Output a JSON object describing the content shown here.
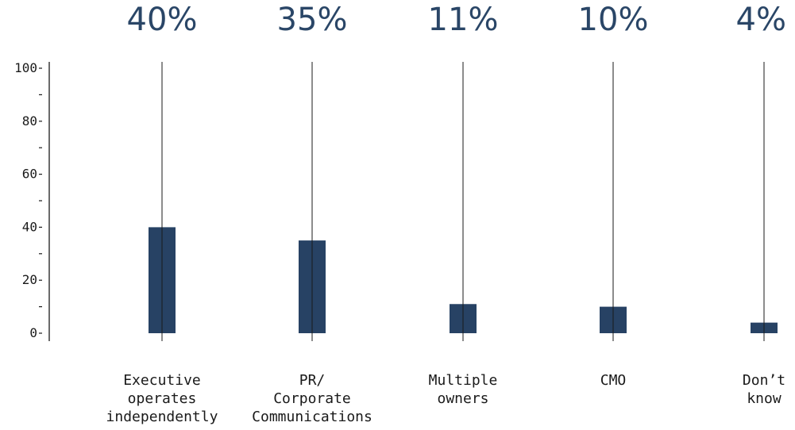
{
  "chart_data": {
    "type": "bar",
    "categories": [
      [
        "Executive",
        "operates",
        "independently"
      ],
      [
        "PR/",
        "Corporate",
        "Communications"
      ],
      [
        "Multiple",
        "owners"
      ],
      [
        "CMO"
      ],
      [
        "Don’t",
        "know"
      ]
    ],
    "values": [
      40,
      35,
      11,
      10,
      4
    ],
    "value_labels": [
      "40%",
      "35%",
      "11%",
      "10%",
      "4%"
    ],
    "bar_color": "#274264",
    "ylim": [
      0,
      100
    ],
    "yticks_labeled": [
      0,
      20,
      40,
      60,
      80,
      100
    ],
    "yticks_minor": [
      10,
      30,
      50,
      70,
      90
    ],
    "grid": false
  }
}
